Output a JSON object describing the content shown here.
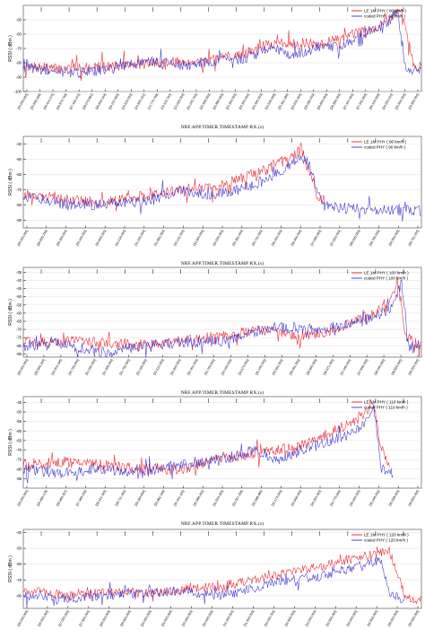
{
  "colors": {
    "le1m": "#e8202a",
    "coded": "#3a2fd0",
    "axis": "#000000",
    "grid": "#d8d8d8",
    "frame": "#444444"
  },
  "chart_data": [
    {
      "type": "line",
      "ylabel": "RSSI ( dBm )",
      "xlabel": "NRF.APP.TIMER.TIMESTAMP RX.(s)",
      "yticks": [
        -50,
        -60,
        -70,
        -80,
        -90,
        -100
      ],
      "ylim": [
        -100,
        -40
      ],
      "xticks": [
        "[25.000.000]",
        "[25.655.166]",
        "[26.414.375]",
        "[26.874.749]",
        "[27.449.372]",
        "[28.079.661]",
        "[28.654.154]",
        "[29.237.600]",
        "[19.520.000]",
        "[15.500.221]",
        "[14.770.746]",
        "[19.123.763]",
        "[13.000.000]",
        "[21.040.700]",
        "[22.408.000]",
        "[22.880.550]",
        "[23.300.000]",
        "[24.300.000]",
        "[24.400.000]",
        "[24.916.408]",
        "[25.301.180]",
        "[25.632.400]",
        "[26.080.000]",
        "[26.600.000]",
        "[26.999.000]",
        "[27.447.400]",
        "[27.941.600]",
        "[28.416.909]",
        "[29.000.010]",
        "[29.505.000]",
        "[29.900.000]"
      ],
      "series": [
        {
          "name": "LE 1M PHY ( 80 km/h )",
          "color": "#e8202a",
          "points": [
            [
              0,
              -83
            ],
            [
              8,
              -84
            ],
            [
              16,
              -83
            ],
            [
              25,
              -82
            ],
            [
              33,
              -80
            ],
            [
              41,
              -79
            ],
            [
              48,
              -78
            ],
            [
              56,
              -73
            ],
            [
              62,
              -67
            ],
            [
              68,
              -66
            ],
            [
              74,
              -67
            ],
            [
              80,
              -63
            ],
            [
              85,
              -58
            ],
            [
              89,
              -55
            ],
            [
              92,
              -49
            ],
            [
              95,
              -41
            ],
            [
              98,
              -82
            ],
            [
              100,
              -83
            ]
          ]
        },
        {
          "name": "coded PHY ( 80 km/h )",
          "color": "#3a2fd0",
          "points": [
            [
              0,
              -83
            ],
            [
              8,
              -86
            ],
            [
              16,
              -87
            ],
            [
              25,
              -82
            ],
            [
              33,
              -79
            ],
            [
              41,
              -82
            ],
            [
              48,
              -79
            ],
            [
              56,
              -77
            ],
            [
              62,
              -69
            ],
            [
              68,
              -75
            ],
            [
              74,
              -69
            ],
            [
              80,
              -69
            ],
            [
              85,
              -60
            ],
            [
              89,
              -56
            ],
            [
              92,
              -50
            ],
            [
              94,
              -45
            ],
            [
              96,
              -85
            ],
            [
              100,
              -86
            ]
          ]
        }
      ]
    },
    {
      "type": "line",
      "ylabel": "RSSI ( dBm )",
      "xlabel": "NRF.APP.TIMER.TIMESTAMP RX.(s)",
      "yticks": [
        -40,
        -50,
        -60,
        -70,
        -80,
        -90
      ],
      "ylim": [
        -95,
        -35
      ],
      "xticks": [
        "[26.000.000]",
        "[26.820.330]",
        "[28.350.000]",
        "[29.150.000]",
        "[30.600.000]",
        "[31.016.000]",
        "[31.240.000]",
        "[31.881.000]",
        "[33.131.000]",
        "[33.900.000]",
        "[34.550.000]",
        "[35.391.000]",
        "[35.731.000]",
        "[36.000.000]",
        "[36.400.000]",
        "[37.060.000]",
        "[37.600.000]",
        "[38.005.000]",
        "[38.760.000]",
        "[39.300.000]",
        "[39.791.000]"
      ],
      "series": [
        {
          "name": "LE 1M PHY ( 90 km/h )",
          "color": "#e8202a",
          "points": [
            [
              0,
              -73
            ],
            [
              10,
              -76
            ],
            [
              20,
              -79
            ],
            [
              30,
              -74
            ],
            [
              40,
              -70
            ],
            [
              48,
              -68
            ],
            [
              55,
              -62
            ],
            [
              61,
              -57
            ],
            [
              66,
              -50
            ],
            [
              70,
              -44
            ],
            [
              72,
              -60
            ],
            [
              74,
              -74
            ],
            [
              76,
              -78
            ]
          ]
        },
        {
          "name": "coded PHY ( 90 km/h )",
          "color": "#3a2fd0",
          "points": [
            [
              0,
              -74
            ],
            [
              10,
              -79
            ],
            [
              20,
              -80
            ],
            [
              30,
              -77
            ],
            [
              40,
              -71
            ],
            [
              48,
              -73
            ],
            [
              55,
              -69
            ],
            [
              61,
              -64
            ],
            [
              66,
              -56
            ],
            [
              70,
              -49
            ],
            [
              72,
              -54
            ],
            [
              75,
              -80
            ],
            [
              80,
              -82
            ],
            [
              100,
              -84
            ]
          ]
        }
      ]
    },
    {
      "type": "line",
      "ylabel": "RSSI ( dBm )",
      "xlabel": "NRF.APP.TIMER.TIMESTAMP RX.(s)",
      "yticks": [
        -35,
        -40,
        -45,
        -50,
        -55,
        -60,
        -65,
        -70,
        -75,
        -80,
        -85
      ],
      "ylim": [
        -87,
        -32
      ],
      "xticks": [
        "[26.000.000]",
        "[28.564.244]",
        "[29.204.196]",
        "[30.709.000]",
        "[31.052.000]",
        "[31.406.000]",
        "[31.752.000]",
        "[32.100.000]",
        "[32.512.000]",
        "[32.900.000]",
        "[33.301.000]",
        "[33.700.000]",
        "[34.100.000]",
        "[34.573.000]",
        "[35.145.000]",
        "[35.591.000]",
        "[36.061.000]",
        "[36.560.000]",
        "[36.971.000]",
        "[37.445.000]",
        "[37.849.000]",
        "[38.340.000]",
        "[38.820.000]",
        "[39.200.000]"
      ],
      "series": [
        {
          "name": "LE 1M PHY ( 100 km/h )",
          "color": "#e8202a",
          "points": [
            [
              0,
              -78
            ],
            [
              10,
              -77
            ],
            [
              20,
              -78
            ],
            [
              30,
              -79
            ],
            [
              40,
              -77
            ],
            [
              50,
              -74
            ],
            [
              58,
              -71
            ],
            [
              62,
              -70
            ],
            [
              68,
              -74
            ],
            [
              76,
              -72
            ],
            [
              82,
              -66
            ],
            [
              88,
              -60
            ],
            [
              92,
              -55
            ],
            [
              94,
              -40
            ],
            [
              96,
              -75
            ],
            [
              100,
              -79
            ]
          ]
        },
        {
          "name": "coded PHY ( 100 km/h )",
          "color": "#3a2fd0",
          "points": [
            [
              0,
              -80
            ],
            [
              10,
              -79
            ],
            [
              20,
              -84
            ],
            [
              30,
              -80
            ],
            [
              40,
              -78
            ],
            [
              50,
              -77
            ],
            [
              58,
              -72
            ],
            [
              62,
              -69
            ],
            [
              68,
              -69
            ],
            [
              76,
              -70
            ],
            [
              82,
              -67
            ],
            [
              88,
              -63
            ],
            [
              92,
              -58
            ],
            [
              95,
              -42
            ],
            [
              97,
              -82
            ],
            [
              100,
              -82
            ]
          ]
        }
      ]
    },
    {
      "type": "line",
      "ylabel": "RSSI ( dBm )",
      "xlabel": "NRF.APP.TIMER.TIMESTAMP RX.(s)",
      "yticks": [
        -45,
        -50,
        -55,
        -60,
        -65,
        -70,
        -75,
        -80,
        -85
      ],
      "ylim": [
        -90,
        -42
      ],
      "xticks": [
        "[26.000.000]",
        "[26.466.178]",
        "[26.960.297]",
        "[27.466.230]",
        "[28.101.160]",
        "[28.711.162]",
        "[29.184.650]",
        "[29.881.349]",
        "[30.441.150]",
        "[30.988.200]",
        "[31.554.350]",
        "[32.007.259]",
        "[32.588.480]",
        "[33.174.000]",
        "[33.596.000]",
        "[34.200.400]",
        "[34.775.000]",
        "[35.000.000]",
        "[35.446.000]",
        "[36.008.000]",
        "[36.600.000]"
      ],
      "series": [
        {
          "name": "LE 1M PHY ( 110 km/h )",
          "color": "#e8202a",
          "points": [
            [
              0,
              -78
            ],
            [
              10,
              -76
            ],
            [
              20,
              -78
            ],
            [
              30,
              -80
            ],
            [
              40,
              -80
            ],
            [
              50,
              -74
            ],
            [
              58,
              -72
            ],
            [
              64,
              -70
            ],
            [
              70,
              -68
            ],
            [
              76,
              -62
            ],
            [
              82,
              -56
            ],
            [
              86,
              -50
            ],
            [
              88,
              -46
            ],
            [
              90,
              -70
            ],
            [
              92,
              -78
            ]
          ]
        },
        {
          "name": "coded PHY ( 110 km/h )",
          "color": "#3a2fd0",
          "points": [
            [
              0,
              -80
            ],
            [
              10,
              -82
            ],
            [
              20,
              -80
            ],
            [
              30,
              -82
            ],
            [
              40,
              -78
            ],
            [
              50,
              -75
            ],
            [
              58,
              -70
            ],
            [
              64,
              -75
            ],
            [
              70,
              -70
            ],
            [
              76,
              -66
            ],
            [
              82,
              -62
            ],
            [
              86,
              -56
            ],
            [
              88,
              -48
            ],
            [
              90,
              -80
            ],
            [
              93,
              -82
            ]
          ]
        }
      ]
    },
    {
      "type": "line",
      "ylabel": "RSSI ( dBm )",
      "xlabel": "NRF.APP.TIMER.TIMESTAMP RX.(s)",
      "yticks": [
        -40,
        -50,
        -60,
        -70,
        -80
      ],
      "ylim": [
        -88,
        -38
      ],
      "xticks": [
        "[26.000.000]",
        "[26.500.000]",
        "[27.000.000]",
        "[27.500.000]",
        "[28.000.000]",
        "[28.500.000]",
        "[29.000.000]",
        "[29.500.000]",
        "[30.000.000]",
        "[30.500.000]",
        "[31.000.000]",
        "[31.500.000]",
        "[32.000.000]",
        "[32.500.000]",
        "[33.000.000]",
        "[33.500.000]",
        "[34.000.000]",
        "[34.500.000]",
        "[35.000.000]",
        "[35.500.000]"
      ],
      "series": [
        {
          "name": "LE 1M PHY ( 120 km/h )",
          "color": "#e8202a",
          "points": [
            [
              0,
              -76
            ],
            [
              10,
              -80
            ],
            [
              20,
              -78
            ],
            [
              30,
              -79
            ],
            [
              40,
              -76
            ],
            [
              50,
              -74
            ],
            [
              58,
              -70
            ],
            [
              66,
              -66
            ],
            [
              74,
              -62
            ],
            [
              80,
              -58
            ],
            [
              86,
              -55
            ],
            [
              92,
              -52
            ],
            [
              96,
              -80
            ],
            [
              100,
              -83
            ]
          ]
        },
        {
          "name": "coded PHY ( 120 km/h )",
          "color": "#3a2fd0",
          "points": [
            [
              0,
              -80
            ],
            [
              10,
              -82
            ],
            [
              20,
              -80
            ],
            [
              30,
              -78
            ],
            [
              40,
              -77
            ],
            [
              50,
              -80
            ],
            [
              58,
              -75
            ],
            [
              66,
              -70
            ],
            [
              74,
              -68
            ],
            [
              80,
              -64
            ],
            [
              86,
              -60
            ],
            [
              90,
              -58
            ],
            [
              92,
              -78
            ],
            [
              96,
              -84
            ]
          ]
        }
      ]
    }
  ]
}
